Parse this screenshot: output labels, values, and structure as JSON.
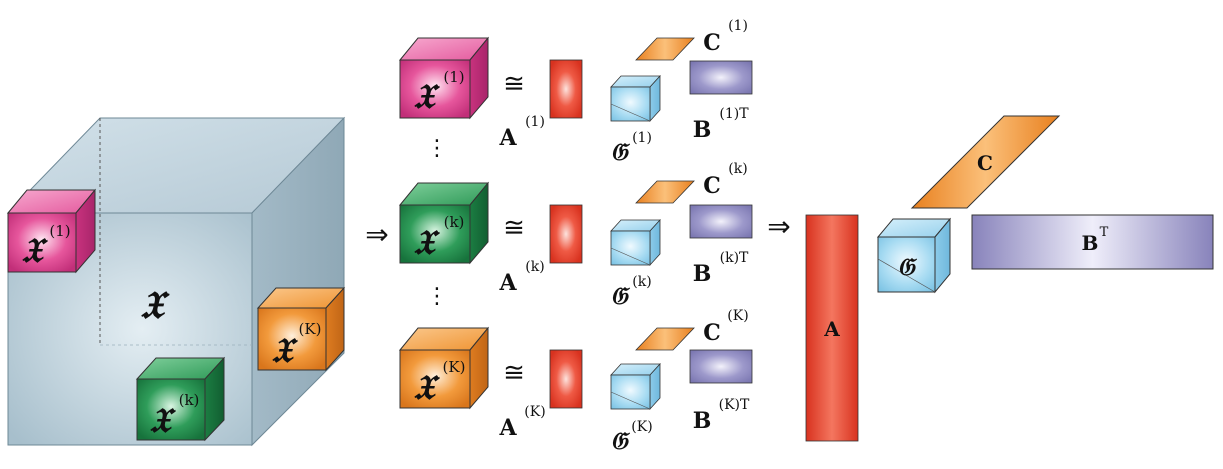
{
  "symbols": {
    "big_tensor": "𝔛",
    "slab_marker_1": "𝔛",
    "slab_marker_k": "𝔛",
    "slab_marker_K": "𝔛",
    "arrow": "⇒",
    "approx": "≅",
    "vdots": "⋮"
  },
  "superscripts": {
    "one": "(1)",
    "k": "(k)",
    "K": "(K)",
    "one_T": "(1)T",
    "k_T": "(k)T",
    "K_T": "(K)T",
    "T": "T"
  },
  "rows": [
    {
      "id": "row-1",
      "tensor": "𝔛",
      "tensor_sup": "(1)",
      "A": "A",
      "A_sup": "(1)",
      "G": "𝔊",
      "G_sup": "(1)",
      "B": "B",
      "B_sup": "(1)T",
      "C": "C",
      "C_sup": "(1)"
    },
    {
      "id": "row-k",
      "tensor": "𝔛",
      "tensor_sup": "(k)",
      "A": "A",
      "A_sup": "(k)",
      "G": "𝔊",
      "G_sup": "(k)",
      "B": "B",
      "B_sup": "(k)T",
      "C": "C",
      "C_sup": "(k)"
    },
    {
      "id": "row-K",
      "tensor": "𝔛",
      "tensor_sup": "(K)",
      "A": "A",
      "A_sup": "(K)",
      "G": "𝔊",
      "G_sup": "(K)",
      "B": "B",
      "B_sup": "(K)T",
      "C": "C",
      "C_sup": "(K)"
    }
  ],
  "result": {
    "A": "A",
    "G": "𝔊",
    "C": "C",
    "B": "B",
    "B_sup": "T"
  },
  "colors": {
    "pink": "#e0468f",
    "green": "#1f8a4a",
    "orange": "#f0902e",
    "red": "#e3402c",
    "lightblue": "#9fd4ee",
    "purple": "#8a86bd",
    "bigcube": "#b9cdd8"
  }
}
